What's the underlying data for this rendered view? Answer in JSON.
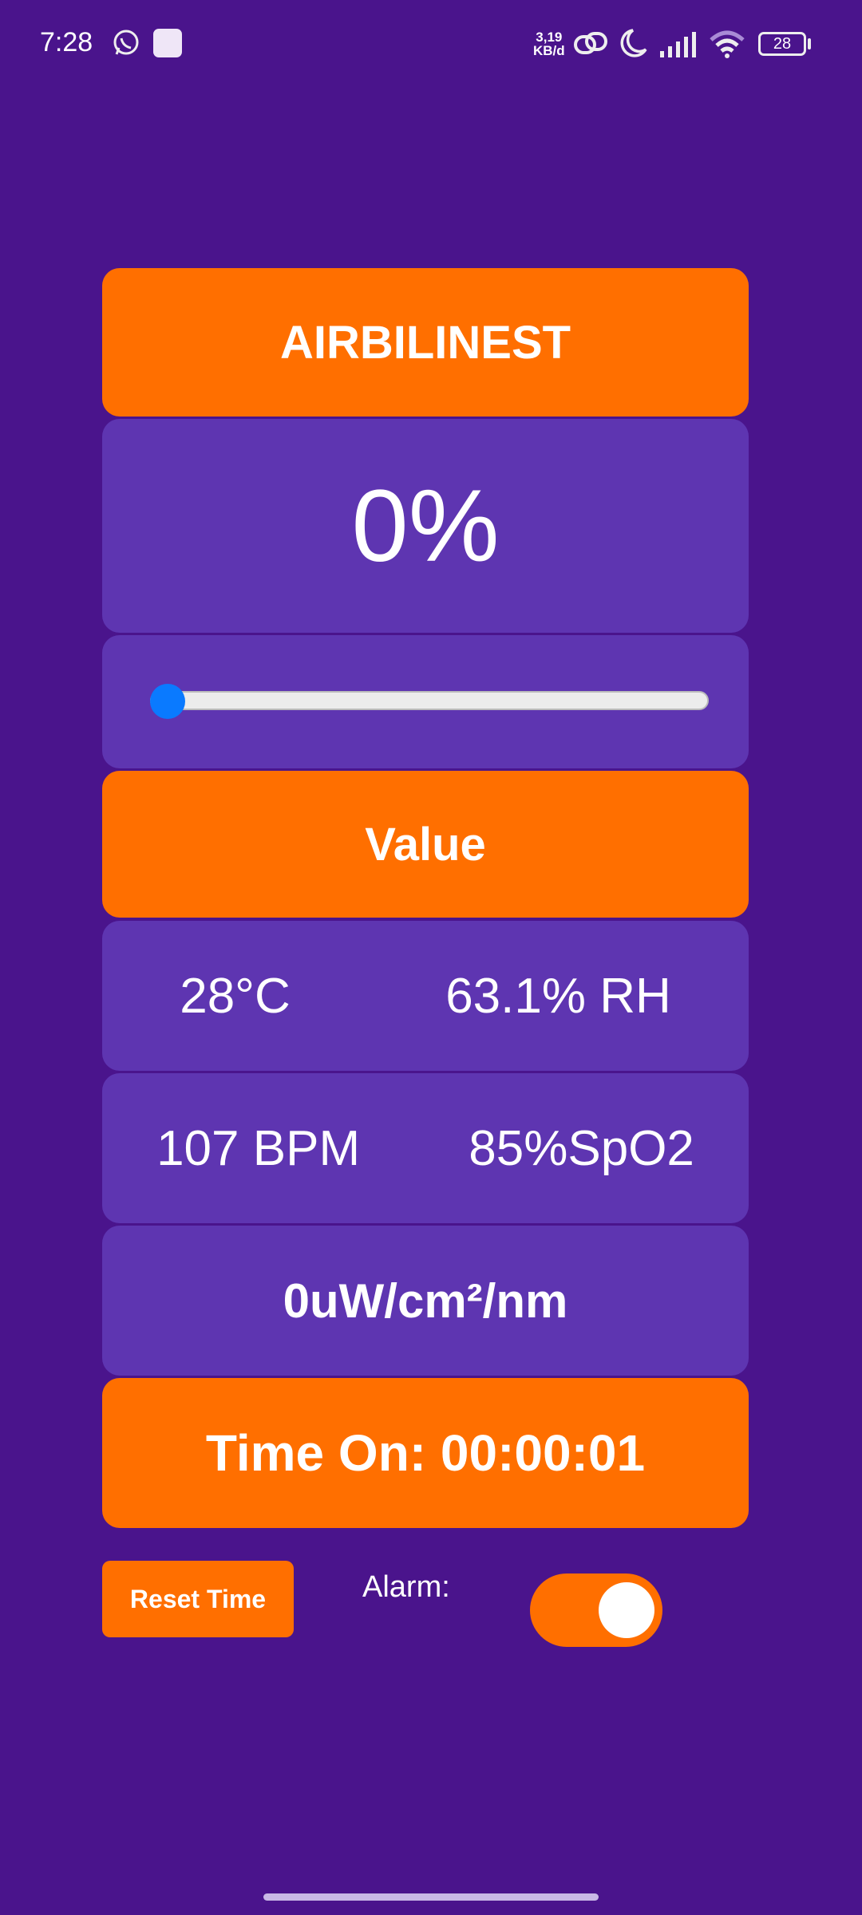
{
  "status_bar": {
    "time": "7:28",
    "net_speed_top": "3,19",
    "net_speed_bottom": "KB/d",
    "battery": "28",
    "icons": [
      "whatsapp-icon",
      "app-notification-icon",
      "link-icon",
      "moon-icon",
      "signal-icon",
      "wifi-icon",
      "battery-icon"
    ]
  },
  "app": {
    "title": "AIRBILINEST",
    "percent": "0%",
    "slider": {
      "value": 0,
      "min": 0,
      "max": 100
    },
    "value_header": "Value",
    "temperature": "28°C",
    "humidity": "63.1% RH",
    "heart_rate": "107 BPM",
    "spo2": "85%SpO2",
    "irradiance": "0uW/cm²/nm",
    "time_on": "Time On: 00:00:01",
    "reset_label": "Reset Time",
    "alarm_label": "Alarm:",
    "alarm_on": true
  },
  "colors": {
    "background": "#4a148c",
    "card": "#5e35b1",
    "accent": "#ff6f00",
    "slider_thumb": "#0a7aff"
  }
}
